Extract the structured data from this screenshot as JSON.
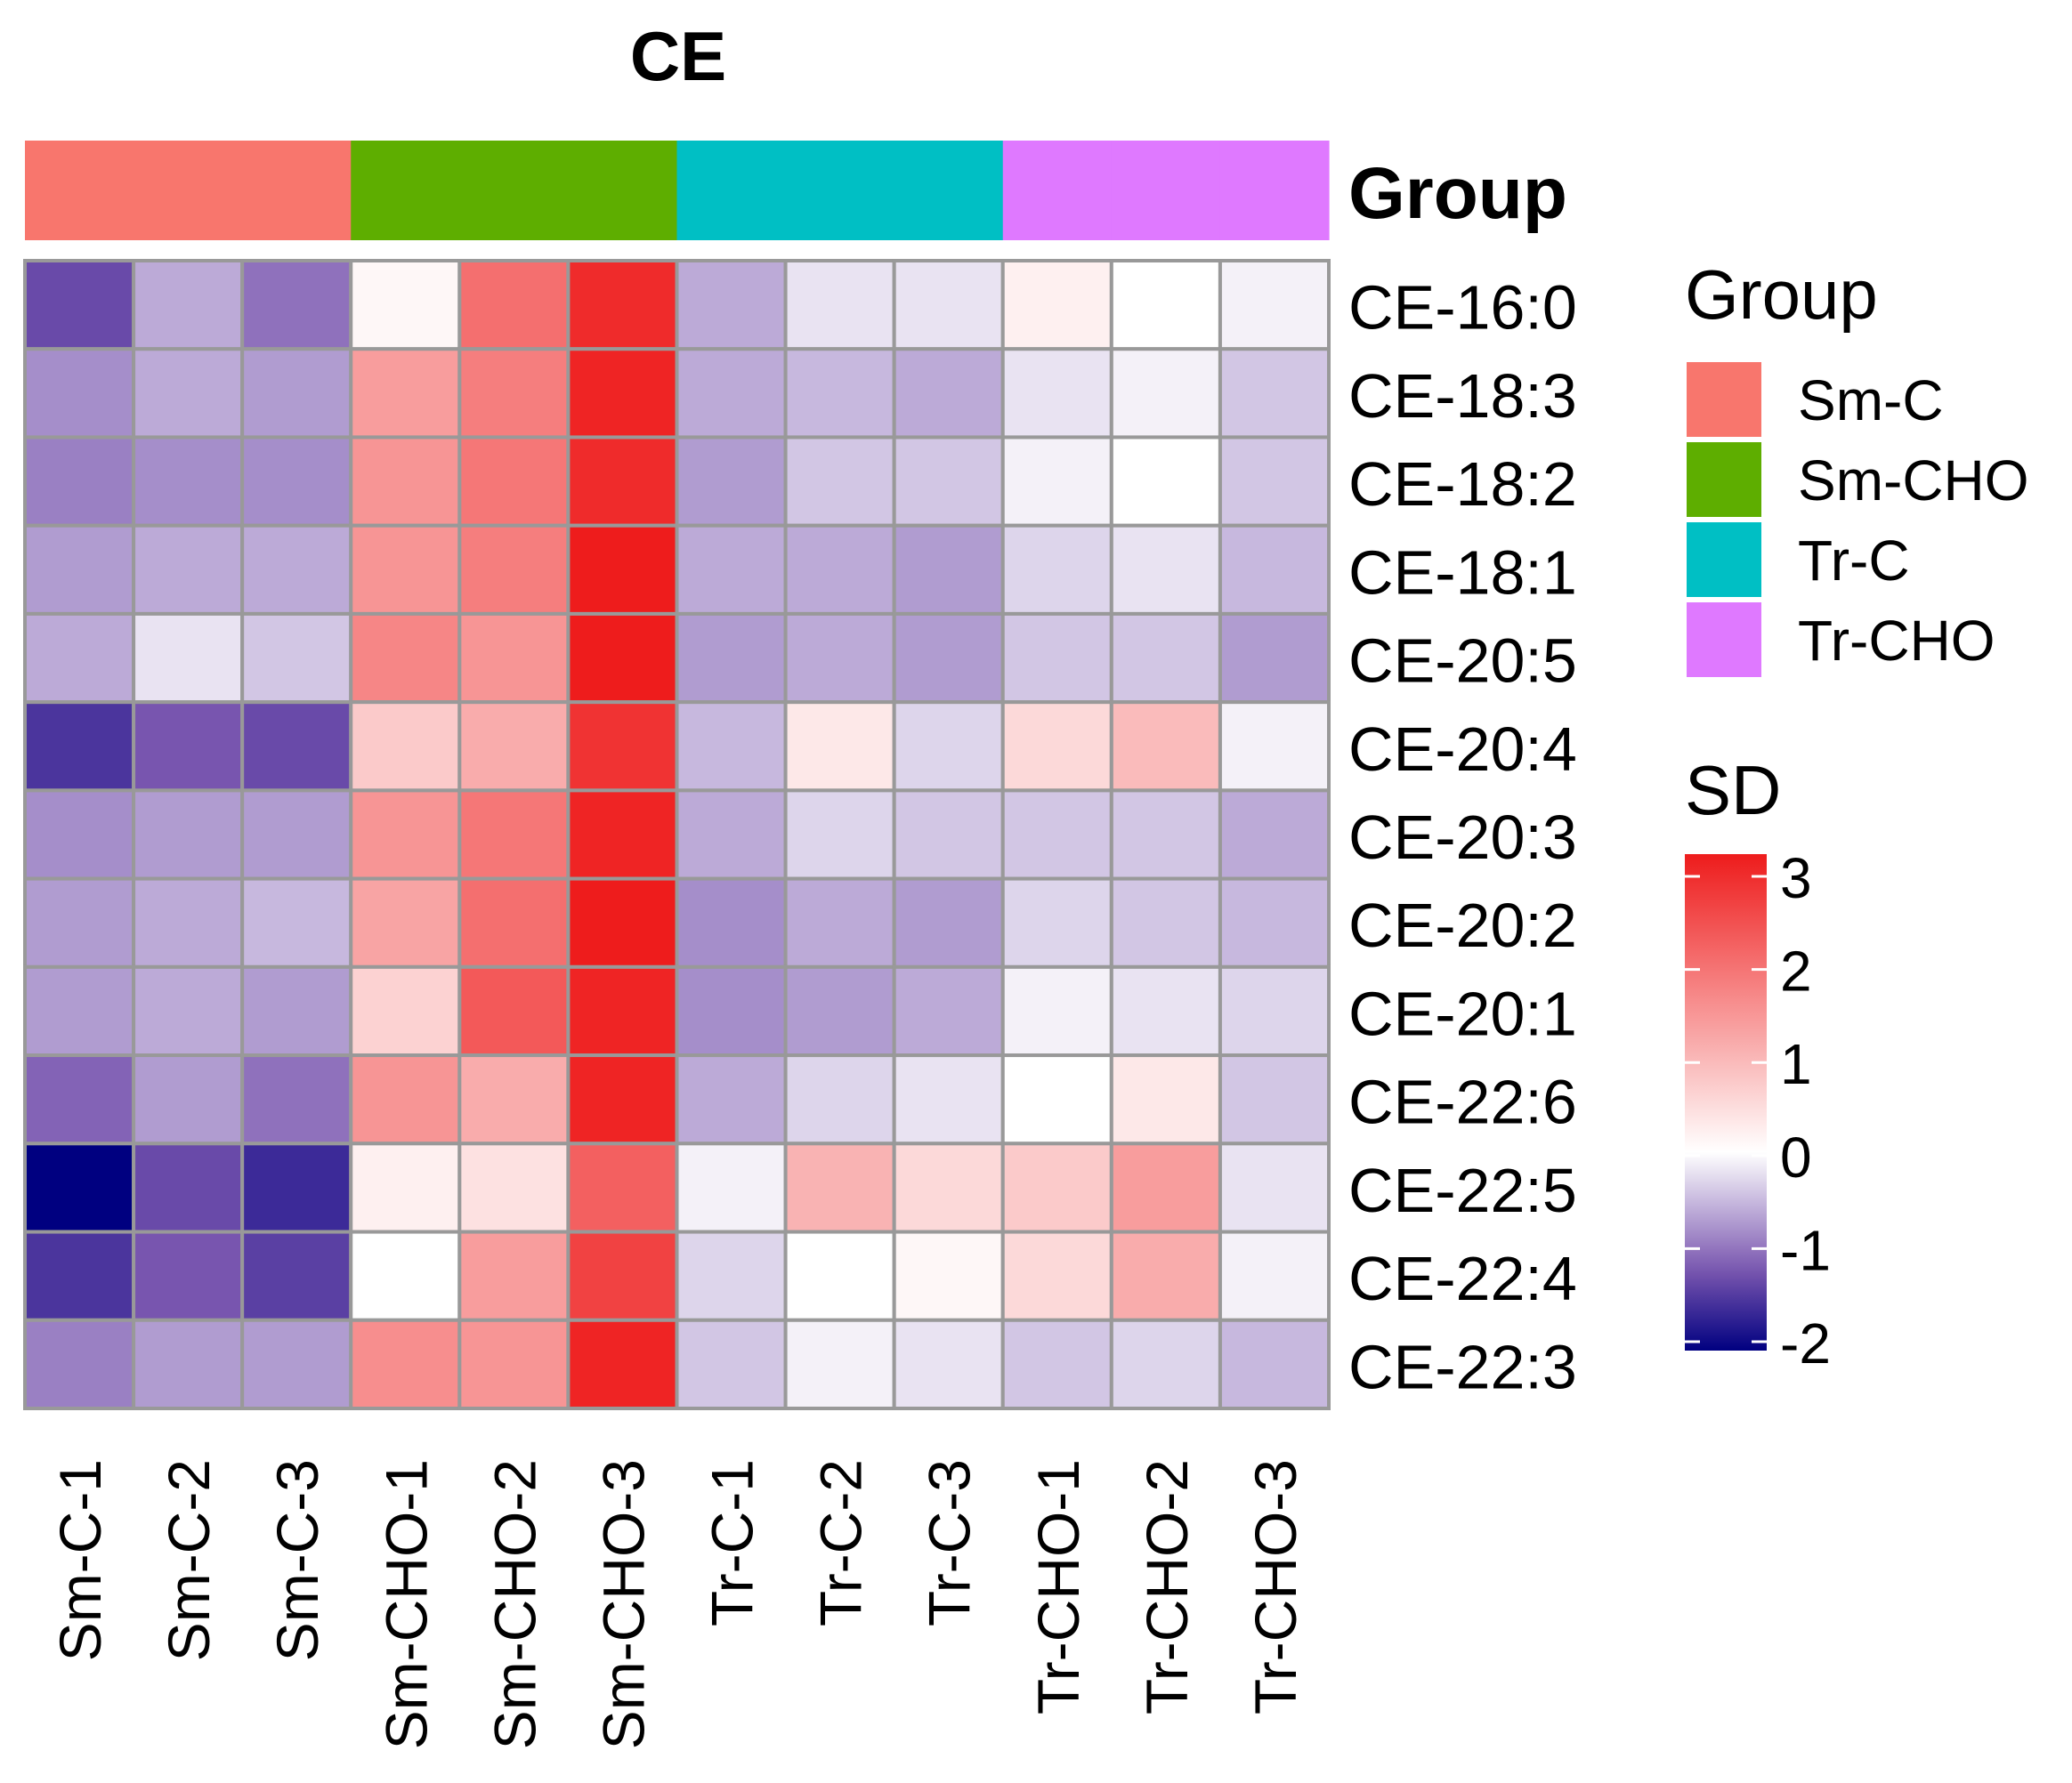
{
  "chart_data": {
    "type": "heatmap",
    "title": "CE",
    "annotation_title": "Group",
    "columns": [
      "Sm-C-1",
      "Sm-C-2",
      "Sm-C-3",
      "Sm-CHO-1",
      "Sm-CHO-2",
      "Sm-CHO-3",
      "Tr-C-1",
      "Tr-C-2",
      "Tr-C-3",
      "Tr-CHO-1",
      "Tr-CHO-2",
      "Tr-CHO-3"
    ],
    "column_groups": [
      "Sm-C",
      "Sm-C",
      "Sm-C",
      "Sm-CHO",
      "Sm-CHO",
      "Sm-CHO",
      "Tr-C",
      "Tr-C",
      "Tr-C",
      "Tr-CHO",
      "Tr-CHO",
      "Tr-CHO"
    ],
    "rows": [
      "CE-16:0",
      "CE-18:3",
      "CE-18:2",
      "CE-18:1",
      "CE-20:5",
      "CE-20:4",
      "CE-20:3",
      "CE-20:2",
      "CE-20:1",
      "CE-22:6",
      "CE-22:5",
      "CE-22:4",
      "CE-22:3"
    ],
    "values": [
      [
        -1.3,
        -0.6,
        -1.0,
        0.1,
        1.9,
        2.8,
        -0.6,
        -0.2,
        -0.2,
        0.2,
        0.0,
        -0.1
      ],
      [
        -0.8,
        -0.6,
        -0.7,
        1.3,
        1.7,
        2.9,
        -0.6,
        -0.5,
        -0.6,
        -0.2,
        -0.1,
        -0.4
      ],
      [
        -0.9,
        -0.8,
        -0.8,
        1.4,
        1.8,
        2.8,
        -0.7,
        -0.4,
        -0.4,
        -0.1,
        0.0,
        -0.4
      ],
      [
        -0.7,
        -0.6,
        -0.6,
        1.4,
        1.7,
        3.0,
        -0.6,
        -0.6,
        -0.7,
        -0.3,
        -0.2,
        -0.5
      ],
      [
        -0.6,
        -0.2,
        -0.4,
        1.6,
        1.4,
        3.0,
        -0.7,
        -0.6,
        -0.7,
        -0.4,
        -0.4,
        -0.7
      ],
      [
        -1.5,
        -1.2,
        -1.3,
        0.7,
        1.1,
        2.7,
        -0.5,
        0.3,
        -0.3,
        0.5,
        0.9,
        -0.1
      ],
      [
        -0.8,
        -0.7,
        -0.7,
        1.4,
        1.8,
        2.9,
        -0.6,
        -0.3,
        -0.4,
        -0.4,
        -0.4,
        -0.6
      ],
      [
        -0.7,
        -0.6,
        -0.5,
        1.2,
        1.9,
        3.0,
        -0.8,
        -0.6,
        -0.7,
        -0.3,
        -0.4,
        -0.5
      ],
      [
        -0.7,
        -0.6,
        -0.7,
        0.6,
        2.2,
        2.9,
        -0.8,
        -0.7,
        -0.6,
        -0.1,
        -0.2,
        -0.3
      ],
      [
        -1.1,
        -0.7,
        -1.0,
        1.4,
        1.1,
        2.9,
        -0.6,
        -0.3,
        -0.2,
        0.0,
        0.3,
        -0.4
      ],
      [
        -2.0,
        -1.3,
        -1.6,
        0.2,
        0.4,
        2.1,
        -0.1,
        1.0,
        0.5,
        0.7,
        1.3,
        -0.2
      ],
      [
        -1.5,
        -1.2,
        -1.4,
        0.0,
        1.3,
        2.5,
        -0.3,
        0.0,
        0.1,
        0.5,
        1.1,
        -0.1
      ],
      [
        -0.9,
        -0.7,
        -0.7,
        1.5,
        1.4,
        2.9,
        -0.4,
        -0.1,
        -0.2,
        -0.4,
        -0.3,
        -0.5
      ]
    ],
    "legend_group": {
      "title": "Group",
      "entries": [
        {
          "label": "Sm-C",
          "color": "#F8766D"
        },
        {
          "label": "Sm-CHO",
          "color": "#5EAE00"
        },
        {
          "label": "Tr-C",
          "color": "#00BFC4"
        },
        {
          "label": "Tr-CHO",
          "color": "#DF79FF"
        }
      ]
    },
    "legend_scale": {
      "title": "SD",
      "min": -2,
      "max": 3,
      "ticks": [
        3,
        2,
        1,
        0,
        -1,
        -2
      ],
      "tick_labels": [
        "3",
        "2",
        "1",
        "0",
        "-1",
        "-2"
      ],
      "low_color": "#000080",
      "mid_color": "#FFFFFF",
      "high_color": "#EE1C1C"
    },
    "grid_color": "#999999"
  }
}
